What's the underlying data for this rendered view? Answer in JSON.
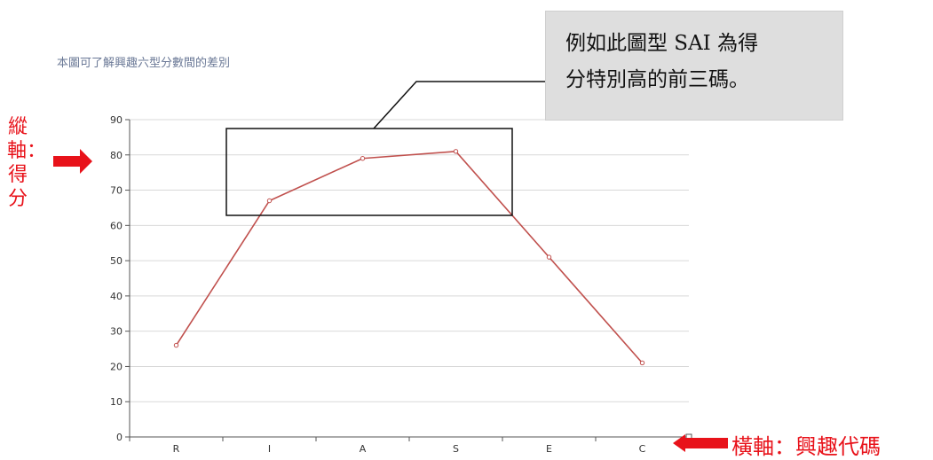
{
  "chart_data": {
    "type": "line",
    "title": "本圖可了解興趣六型分數間的差別",
    "categories": [
      "R",
      "I",
      "A",
      "S",
      "E",
      "C"
    ],
    "values": [
      26,
      67,
      79,
      81,
      51,
      21
    ],
    "ylim": [
      0,
      90
    ],
    "yticks": [
      0,
      10,
      20,
      30,
      40,
      50,
      60,
      70,
      80,
      90
    ],
    "grid": true,
    "line_color": "#c0504d"
  },
  "annotations": {
    "y_axis": "縱軸：得分",
    "x_axis": "橫軸：興趣代碼",
    "callout_lines": [
      "例如此圖型 SAI 為得",
      "分特別高的前三碼。"
    ],
    "arrow_color": "#e8121a"
  }
}
